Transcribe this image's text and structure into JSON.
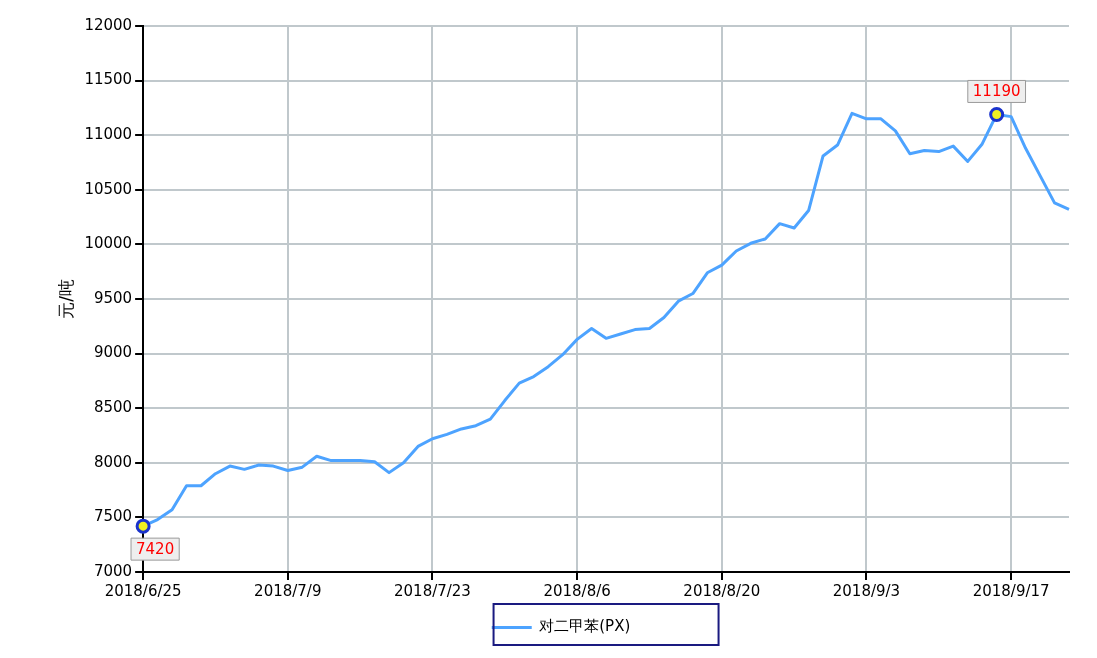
{
  "chart_data": {
    "type": "line",
    "ylabel": "元/吨",
    "categories": [
      "2018/6/25",
      null,
      null,
      null,
      null,
      null,
      null,
      null,
      null,
      null,
      "2018/7/9",
      null,
      null,
      null,
      null,
      null,
      null,
      null,
      null,
      null,
      "2018/7/23",
      null,
      null,
      null,
      null,
      null,
      null,
      null,
      null,
      null,
      "2018/8/6",
      null,
      null,
      null,
      null,
      null,
      null,
      null,
      null,
      null,
      "2018/8/20",
      null,
      null,
      null,
      null,
      null,
      null,
      null,
      null,
      null,
      "2018/9/3",
      null,
      null,
      null,
      null,
      null,
      null,
      null,
      null,
      null,
      "2018/9/17",
      null,
      null,
      null,
      null
    ],
    "series": [
      {
        "name": "对二甲苯(PX)",
        "color": "#4da3ff",
        "values": [
          7420,
          7480,
          7570,
          7790,
          7790,
          7900,
          7970,
          7940,
          7980,
          7970,
          7930,
          7960,
          8060,
          8020,
          8020,
          8020,
          8010,
          7910,
          8000,
          8150,
          8220,
          8260,
          8310,
          8340,
          8400,
          8570,
          8730,
          8790,
          8880,
          8990,
          9130,
          9230,
          9140,
          9180,
          9220,
          9230,
          9330,
          9480,
          9550,
          9740,
          9810,
          9940,
          10010,
          10050,
          10190,
          10150,
          10310,
          10810,
          10910,
          11200,
          11150,
          11150,
          11040,
          10830,
          10860,
          10850,
          10900,
          10760,
          10920,
          11190,
          11170,
          10880,
          10630,
          10380,
          10320
        ]
      }
    ],
    "ylim": [
      7000,
      12000
    ],
    "yticks": [
      7000,
      7500,
      8000,
      8500,
      9000,
      9500,
      10000,
      10500,
      11000,
      11500,
      12000
    ],
    "grid": true,
    "legend": "bottom",
    "marker": "none",
    "line_style": "solid",
    "annotations": [
      {
        "text": "7420",
        "x": "2018/6/25",
        "y": 7420
      },
      {
        "text": "11190",
        "y": 11190
      }
    ]
  }
}
